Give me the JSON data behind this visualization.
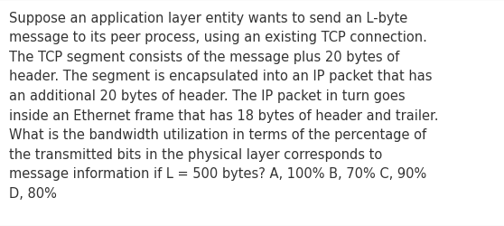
{
  "lines": [
    "Suppose an application layer entity wants to send an L-byte",
    "message to its peer process, using an existing TCP connection.",
    "The TCP segment consists of the message plus 20 bytes of",
    "header. The segment is encapsulated into an IP packet that has",
    "an additional 20 bytes of header. The IP packet in turn goes",
    "inside an Ethernet frame that has 18 bytes of header and trailer.",
    "What is the bandwidth utilization in terms of the percentage of",
    "the transmitted bits in the physical layer corresponds to",
    "message information if L = 500 bytes? A, 100% B, 70% C, 90%",
    "D, 80%"
  ],
  "background_color": "#ffffff",
  "text_color": "#333333",
  "font_size": 10.5,
  "border_color": "#c8c8c8",
  "fig_width": 5.58,
  "fig_height": 2.51,
  "dpi": 100
}
